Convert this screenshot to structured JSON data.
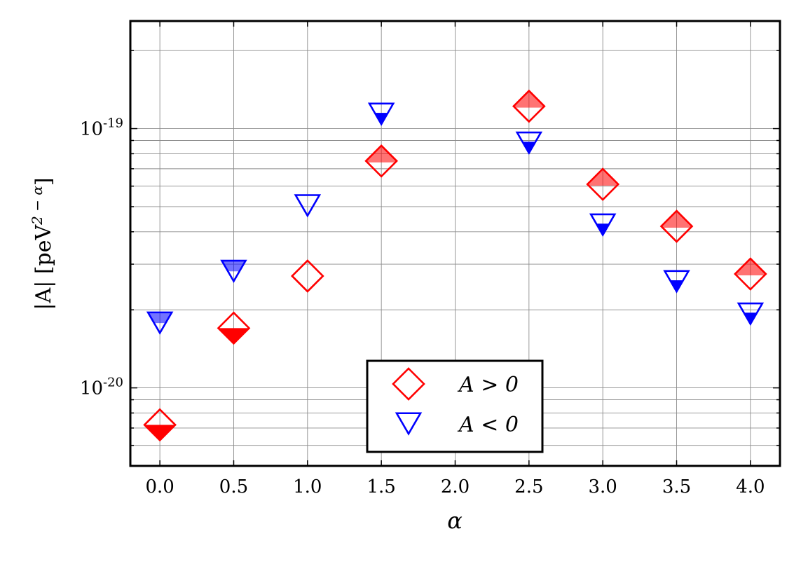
{
  "chart_data": {
    "type": "scatter",
    "xlabel": "α",
    "ylabel": "|A|   [peV",
    "ylabel_sup": "2 − α",
    "ylabel_end": "]",
    "yscale": "log",
    "xlim": [
      -0.2,
      4.2
    ],
    "ylim": [
      5e-21,
      2.6e-19
    ],
    "x_ticks": [
      0,
      0.5,
      1,
      1.5,
      2,
      2.5,
      3,
      3.5,
      4
    ],
    "x_tick_labels": [
      "0.0",
      "0.5",
      "1.0",
      "1.5",
      "2.0",
      "2.5",
      "3.0",
      "3.5",
      "4.0"
    ],
    "y_ticks": [
      {
        "value": 1e-20,
        "base": "10",
        "exp": "-20"
      },
      {
        "value": 1e-19,
        "base": "10",
        "exp": "-19"
      }
    ],
    "grid": true,
    "legend_position": "bottom-center",
    "series": [
      {
        "name": "A > 0",
        "marker": "diamond",
        "color": "#ff0000",
        "points": [
          {
            "x": 0.0,
            "y": 7.2e-21,
            "fill": "solid-lower"
          },
          {
            "x": 0.5,
            "y": 1.7e-20,
            "fill": "solid-lower"
          },
          {
            "x": 1.0,
            "y": 2.7e-20,
            "fill": "none"
          },
          {
            "x": 1.5,
            "y": 7.5e-20,
            "fill": "light-upper"
          },
          {
            "x": 2.5,
            "y": 1.22e-19,
            "fill": "light-upper"
          },
          {
            "x": 3.0,
            "y": 6.1e-20,
            "fill": "light-upper"
          },
          {
            "x": 3.5,
            "y": 4.2e-20,
            "fill": "light-upper"
          },
          {
            "x": 4.0,
            "y": 2.75e-20,
            "fill": "light-upper"
          }
        ]
      },
      {
        "name": "A < 0",
        "marker": "triangle-down",
        "color": "#0000ff",
        "points": [
          {
            "x": 0.0,
            "y": 1.8e-20,
            "fill": "light-upper"
          },
          {
            "x": 0.5,
            "y": 2.85e-20,
            "fill": "light-upper"
          },
          {
            "x": 1.0,
            "y": 5.1e-20,
            "fill": "none"
          },
          {
            "x": 1.5,
            "y": 1.15e-19,
            "fill": "solid-lower"
          },
          {
            "x": 2.5,
            "y": 8.9e-20,
            "fill": "solid-lower"
          },
          {
            "x": 3.0,
            "y": 4.3e-20,
            "fill": "solid-lower"
          },
          {
            "x": 3.5,
            "y": 2.6e-20,
            "fill": "solid-lower"
          },
          {
            "x": 4.0,
            "y": 1.95e-20,
            "fill": "solid-lower"
          }
        ]
      }
    ],
    "legend": [
      {
        "label": "A > 0",
        "marker": "diamond",
        "color": "#ff0000"
      },
      {
        "label": "A < 0",
        "marker": "triangle-down",
        "color": "#0000ff"
      }
    ]
  }
}
